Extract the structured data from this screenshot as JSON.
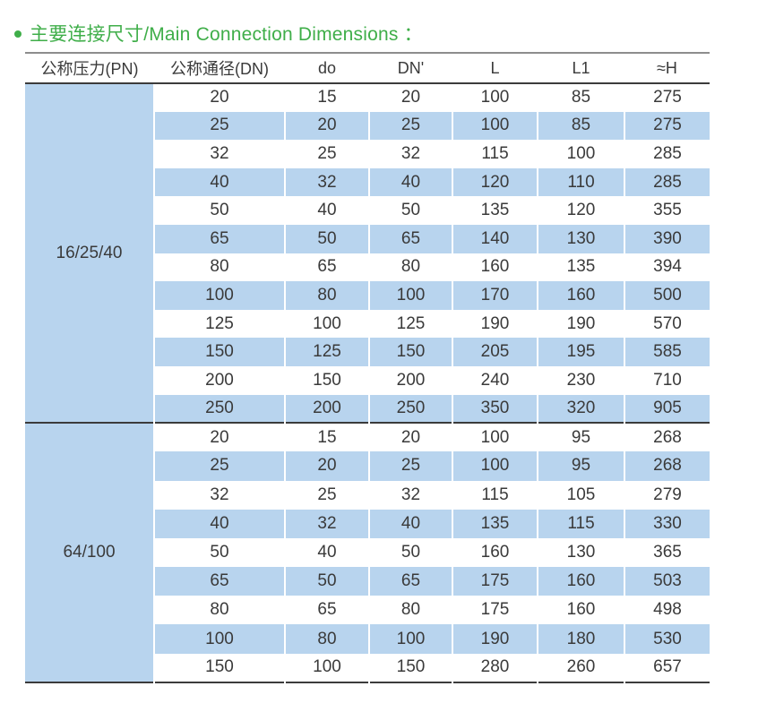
{
  "page": {
    "title": "主要连接尺寸/Main Connection Dimensions ：",
    "bullet_icon": "green-dot"
  },
  "colors": {
    "accent_green": "#3fae49",
    "row_blue": "#b8d4ee",
    "text": "#3a3a3a",
    "line_dark": "#3b3b3b",
    "line_gray": "#8d8d8d"
  },
  "table": {
    "headers": [
      "公称压力(PN)",
      "公称通径(DN)",
      "do",
      "DN'",
      "L",
      "L1",
      "≈H"
    ],
    "groups": [
      {
        "pn": "16/25/40",
        "rows": [
          [
            "20",
            "15",
            "20",
            "100",
            "85",
            "275"
          ],
          [
            "25",
            "20",
            "25",
            "100",
            "85",
            "275"
          ],
          [
            "32",
            "25",
            "32",
            "115",
            "100",
            "285"
          ],
          [
            "40",
            "32",
            "40",
            "120",
            "110",
            "285"
          ],
          [
            "50",
            "40",
            "50",
            "135",
            "120",
            "355"
          ],
          [
            "65",
            "50",
            "65",
            "140",
            "130",
            "390"
          ],
          [
            "80",
            "65",
            "80",
            "160",
            "135",
            "394"
          ],
          [
            "100",
            "80",
            "100",
            "170",
            "160",
            "500"
          ],
          [
            "125",
            "100",
            "125",
            "190",
            "190",
            "570"
          ],
          [
            "150",
            "125",
            "150",
            "205",
            "195",
            "585"
          ],
          [
            "200",
            "150",
            "200",
            "240",
            "230",
            "710"
          ],
          [
            "250",
            "200",
            "250",
            "350",
            "320",
            "905"
          ]
        ]
      },
      {
        "pn": "64/100",
        "rows": [
          [
            "20",
            "15",
            "20",
            "100",
            "95",
            "268"
          ],
          [
            "25",
            "20",
            "25",
            "100",
            "95",
            "268"
          ],
          [
            "32",
            "25",
            "32",
            "115",
            "105",
            "279"
          ],
          [
            "40",
            "32",
            "40",
            "135",
            "115",
            "330"
          ],
          [
            "50",
            "40",
            "50",
            "160",
            "130",
            "365"
          ],
          [
            "65",
            "50",
            "65",
            "175",
            "160",
            "503"
          ],
          [
            "80",
            "65",
            "80",
            "175",
            "160",
            "498"
          ],
          [
            "100",
            "80",
            "100",
            "190",
            "180",
            "530"
          ],
          [
            "150",
            "100",
            "150",
            "280",
            "260",
            "657"
          ]
        ]
      }
    ]
  }
}
